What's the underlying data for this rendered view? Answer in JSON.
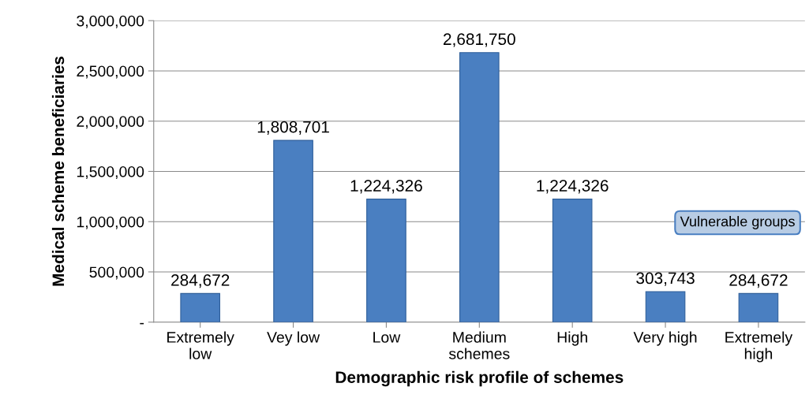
{
  "chart_data": {
    "type": "bar",
    "xlabel": "Demographic risk profile of schemes",
    "ylabel": "Medical scheme beneficiaries",
    "categories": [
      "Extremely\nlow",
      "Vey low",
      "Low",
      "Medium\nschemes",
      "High",
      "Very high",
      "Extremely\nhigh"
    ],
    "values": [
      284672,
      1808701,
      1224326,
      2681750,
      1224326,
      303743,
      284672
    ],
    "color": "#4a7fc1",
    "ylim": [
      0,
      3000000
    ],
    "yticks": [
      {
        "value": 0,
        "label": "-"
      },
      {
        "value": 500000,
        "label": "500,000"
      },
      {
        "value": 1000000,
        "label": "1,000,000"
      },
      {
        "value": 1500000,
        "label": "1,500,000"
      },
      {
        "value": 2000000,
        "label": "2,000,000"
      },
      {
        "value": 2500000,
        "label": "2,500,000"
      },
      {
        "value": 3000000,
        "label": "3,000,000"
      }
    ],
    "grid": "y",
    "value_labels": [
      "284,672",
      "1,808,701",
      "1,224,326",
      "2,681,750",
      "1,224,326",
      "303,743",
      "284,672"
    ],
    "annotations": [
      "Vulnerable groups"
    ]
  }
}
